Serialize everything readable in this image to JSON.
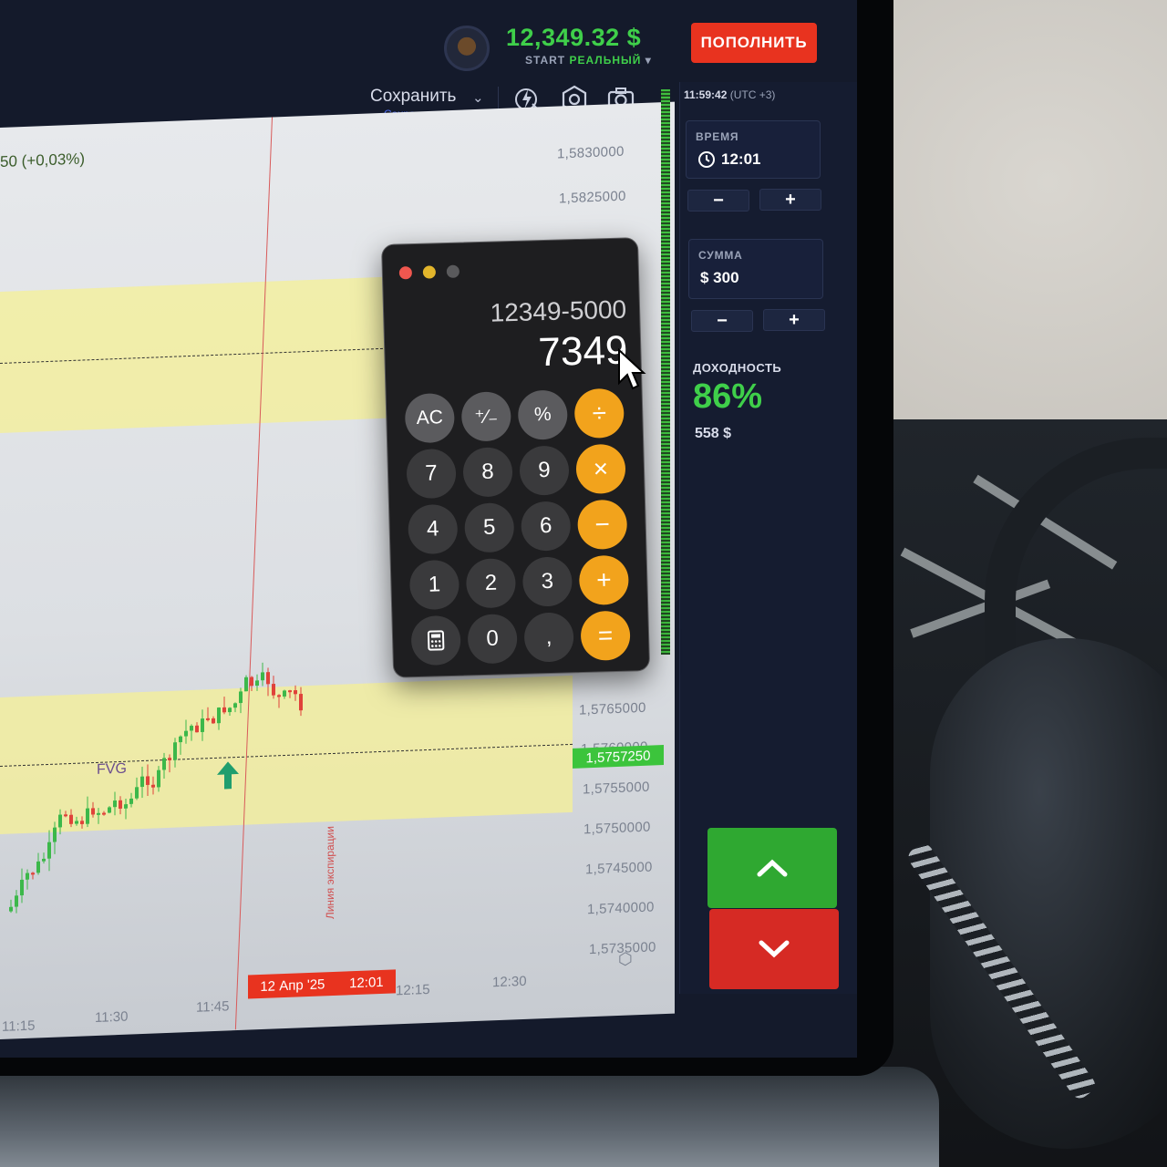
{
  "header": {
    "balance": "12,349.32 $",
    "account_type_prefix": "START",
    "account_type": "РЕАЛЬНЫЙ",
    "account_chevron": "▾",
    "deposit_label": "ПОПОЛНИТЬ"
  },
  "toolbar": {
    "save_label": "Сохранить",
    "save_sublabel": "Сохранить",
    "icons": [
      "lightning-cursor-icon",
      "hexagon-settings-icon",
      "camera-icon"
    ]
  },
  "chart": {
    "change": "50 (+0,03%)",
    "zone_label": "FVG",
    "price_ticks": [
      "1,5830000",
      "1,5825000",
      "1,5765000",
      "1,5760000",
      "1,5755000",
      "1,5750000",
      "1,5745000",
      "1,5740000",
      "1,5735000"
    ],
    "current_price": "1,5757250",
    "time_ticks": [
      "11:15",
      "11:30",
      "11:45",
      "12:15",
      "12:30"
    ],
    "expiry_date": "12 Апр '25",
    "expiry_time": "12:01",
    "expiry_line_label": "Линия экспирации",
    "colors": {
      "up": "#3cb84a",
      "down": "#e0423a",
      "zone": "#f6f096"
    }
  },
  "panel": {
    "clock_time": "11:59:42",
    "clock_tz": "(UTC +3)",
    "time_label": "ВРЕМЯ",
    "time_value": "12:01",
    "amount_label": "СУММА",
    "amount_value": "$ 300",
    "minus": "−",
    "plus": "+",
    "profit_label": "ДОХОДНОСТЬ",
    "profit_percent": "86%",
    "profit_amount": "558 $"
  },
  "calculator": {
    "expression": "12349-5000",
    "result": "7349",
    "keys": [
      [
        "AC",
        "⁺∕₋",
        "%",
        "÷"
      ],
      [
        "7",
        "8",
        "9",
        "×"
      ],
      [
        "4",
        "5",
        "6",
        "−"
      ],
      [
        "1",
        "2",
        "3",
        "+"
      ],
      [
        "calculator-icon",
        "0",
        ",",
        "="
      ]
    ]
  }
}
